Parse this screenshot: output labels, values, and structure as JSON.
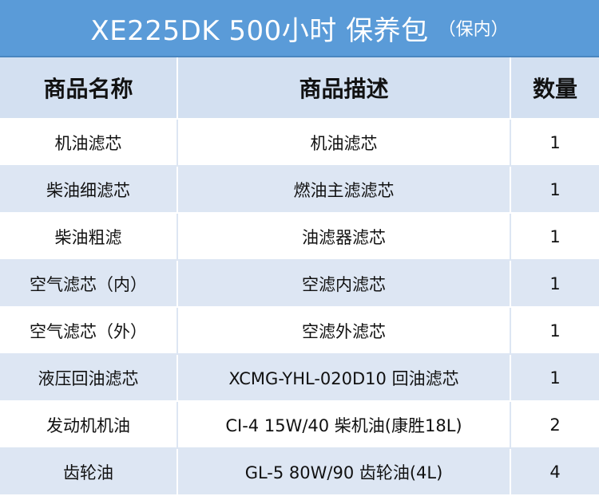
{
  "title": {
    "main": "XE225DK 500小时 保养包",
    "sub": "（保内）"
  },
  "table": {
    "headers": [
      "商品名称",
      "商品描述",
      "数量"
    ],
    "rows": [
      {
        "name": "机油滤芯",
        "desc": "机油滤芯",
        "qty": "1"
      },
      {
        "name": "柴油细滤芯",
        "desc": "燃油主滤滤芯",
        "qty": "1"
      },
      {
        "name": "柴油粗滤",
        "desc": "油滤器滤芯",
        "qty": "1"
      },
      {
        "name": "空气滤芯（内）",
        "desc": "空滤内滤芯",
        "qty": "1"
      },
      {
        "name": "空气滤芯（外）",
        "desc": "空滤外滤芯",
        "qty": "1"
      },
      {
        "name": "液压回油滤芯",
        "desc": "XCMG-YHL-020D10 回油滤芯",
        "qty": "1"
      },
      {
        "name": "发动机机油",
        "desc": "CI-4 15W/40 柴机油(康胜18L)",
        "qty": "2"
      },
      {
        "name": "齿轮油",
        "desc": "GL-5 80W/90 齿轮油(4L)",
        "qty": "4"
      }
    ]
  },
  "colors": {
    "title_bg": "#5a9bd8",
    "header_bg": "#d3e0f1",
    "row_alt_bg": "#dde6f3"
  }
}
